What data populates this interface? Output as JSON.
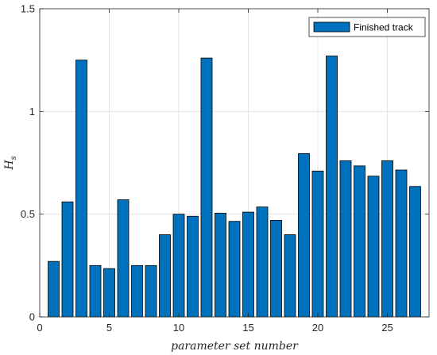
{
  "chart_data": {
    "type": "bar",
    "x": [
      1,
      2,
      3,
      4,
      5,
      6,
      7,
      8,
      9,
      10,
      11,
      12,
      13,
      14,
      15,
      16,
      17,
      18,
      19,
      20,
      21,
      22,
      23,
      24,
      25,
      26,
      27
    ],
    "series": [
      {
        "name": "Finished track",
        "values": [
          0.27,
          0.56,
          1.25,
          0.25,
          0.235,
          0.57,
          0.25,
          0.25,
          0.4,
          0.5,
          0.49,
          1.26,
          0.505,
          0.465,
          0.51,
          0.535,
          0.47,
          0.4,
          0.795,
          0.71,
          1.27,
          0.76,
          0.735,
          0.685,
          0.76,
          0.715,
          0.635
        ],
        "color": "#0072BD"
      }
    ],
    "xlabel": "parameter set number",
    "ylabel_main": "H",
    "ylabel_sub": "s",
    "xlim": [
      0,
      28
    ],
    "ylim": [
      0,
      1.5
    ],
    "xticks": [
      0,
      5,
      10,
      15,
      20,
      25
    ],
    "yticks": [
      0,
      0.5,
      1,
      1.5
    ],
    "xtick_labels": [
      "0",
      "5",
      "10",
      "15",
      "20",
      "25"
    ],
    "ytick_labels": [
      "0",
      "0.5",
      "1",
      "1.5"
    ],
    "grid": true,
    "legend_position": "top-right"
  }
}
